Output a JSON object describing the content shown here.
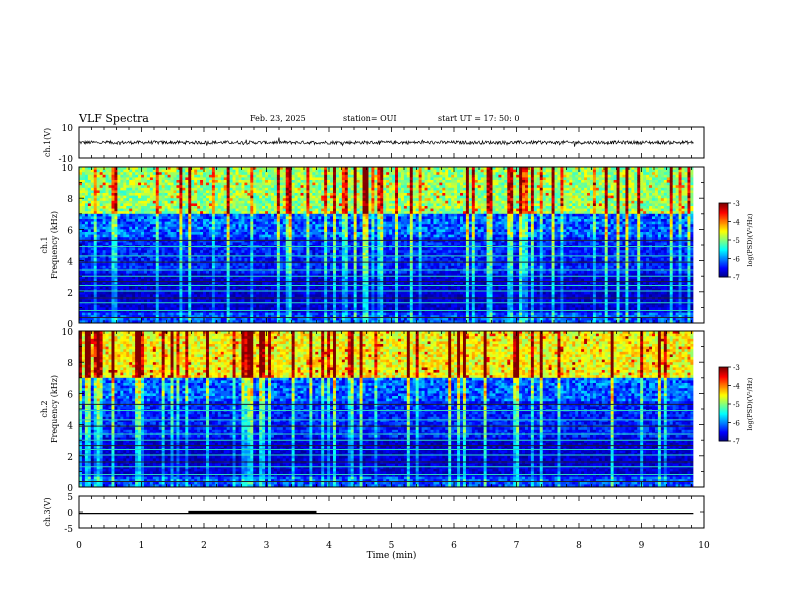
{
  "header": {
    "title": "VLF Spectra",
    "date": "Feb. 23, 2025",
    "station": "station= OUI",
    "start": "start  UT =   17: 50: 0"
  },
  "chart_data": [
    {
      "type": "line",
      "name": "waveform-ch1",
      "ylabel": "ch.1(V)",
      "ylim": [
        -10,
        10
      ],
      "ytick_labels": [
        "10",
        "-10"
      ],
      "xlim": [
        0,
        10
      ],
      "note_level": 0
    },
    {
      "type": "heatmap",
      "name": "spectrogram-ch1",
      "ylabel": "ch.1\nFrequency (kHz)",
      "ylim": [
        0,
        10
      ],
      "ytick_labels": [
        "0",
        "2",
        "4",
        "6",
        "8",
        "10"
      ],
      "xlim": [
        0,
        10
      ],
      "colorbar": {
        "label": "log(PSD)(V²/Hz)",
        "range": [
          -7,
          -3
        ],
        "tick_labels": [
          "-3",
          "-4",
          "-5",
          "-6",
          "-7"
        ]
      }
    },
    {
      "type": "heatmap",
      "name": "spectrogram-ch2",
      "ylabel": "ch.2\nFrequency (kHz)",
      "ylim": [
        0,
        10
      ],
      "ytick_labels": [
        "0",
        "2",
        "4",
        "6",
        "8",
        "10"
      ],
      "xlim": [
        0,
        10
      ],
      "colorbar": {
        "label": "log(PSD)(V²/Hz)",
        "range": [
          -7,
          -3
        ],
        "tick_labels": [
          "-3",
          "-4",
          "-5",
          "-6",
          "-7"
        ]
      }
    },
    {
      "type": "line",
      "name": "ch3",
      "ylabel": "ch.3(V)",
      "ylim": [
        -5,
        5
      ],
      "ytick_labels": [
        "5",
        "0",
        "-5"
      ],
      "xlim": [
        0,
        10
      ],
      "xlabel": "Time (min)",
      "xtick_labels": [
        "0",
        "1",
        "2",
        "3",
        "4",
        "5",
        "6",
        "7",
        "8",
        "9",
        "10"
      ],
      "level": -0.5,
      "thick_segment": [
        1.75,
        3.8
      ]
    }
  ]
}
